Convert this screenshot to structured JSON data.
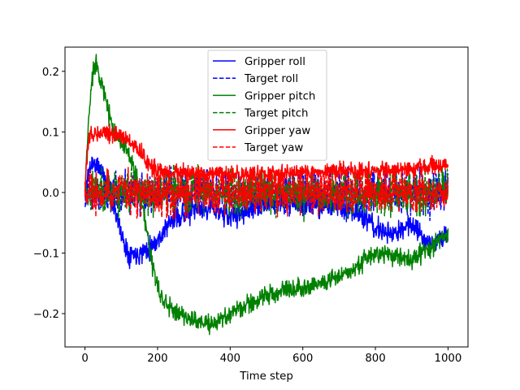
{
  "chart_data": {
    "type": "line",
    "xlabel": "Time step",
    "ylabel": "",
    "xlim": [
      -55,
      1055
    ],
    "ylim": [
      -0.255,
      0.24
    ],
    "x_ticks": [
      0,
      200,
      400,
      600,
      800,
      1000
    ],
    "y_ticks": [
      -0.2,
      -0.1,
      0.0,
      0.1,
      0.2
    ],
    "x_tick_labels": [
      "0",
      "200",
      "400",
      "600",
      "800",
      "1000"
    ],
    "y_tick_labels": [
      "−0.2",
      "−0.1",
      "0.0",
      "0.1",
      "0.2"
    ],
    "legend_position": "top-center",
    "series": [
      {
        "name": "Gripper roll",
        "color": "#0000ff",
        "dash": "solid",
        "noise": 0.009,
        "seed": 11,
        "x": [
          0,
          10,
          20,
          40,
          60,
          80,
          100,
          120,
          150,
          180,
          200,
          220,
          250,
          300,
          350,
          400,
          450,
          500,
          550,
          600,
          650,
          700,
          750,
          800,
          850,
          900,
          950,
          1000
        ],
        "values": [
          0.0,
          0.035,
          0.05,
          0.04,
          0.02,
          -0.02,
          -0.07,
          -0.1,
          -0.1,
          -0.09,
          -0.08,
          -0.06,
          -0.04,
          -0.03,
          -0.025,
          -0.04,
          -0.03,
          -0.02,
          -0.015,
          -0.02,
          -0.02,
          -0.025,
          -0.03,
          -0.06,
          -0.07,
          -0.05,
          -0.085,
          -0.07
        ]
      },
      {
        "name": "Target roll",
        "color": "#0000ff",
        "dash": "dashed",
        "noise": 0.017,
        "seed": 23,
        "x": [
          0,
          1000
        ],
        "values": [
          0.0,
          0.0
        ]
      },
      {
        "name": "Gripper pitch",
        "color": "#008000",
        "dash": "solid",
        "noise": 0.008,
        "seed": 37,
        "x": [
          0,
          10,
          20,
          30,
          50,
          70,
          100,
          130,
          160,
          180,
          200,
          230,
          260,
          300,
          350,
          400,
          450,
          500,
          550,
          600,
          650,
          700,
          750,
          800,
          850,
          900,
          950,
          1000
        ],
        "values": [
          0.0,
          0.12,
          0.19,
          0.22,
          0.17,
          0.12,
          0.08,
          0.05,
          -0.03,
          -0.1,
          -0.16,
          -0.19,
          -0.2,
          -0.21,
          -0.22,
          -0.2,
          -0.185,
          -0.17,
          -0.16,
          -0.155,
          -0.15,
          -0.14,
          -0.12,
          -0.1,
          -0.105,
          -0.11,
          -0.09,
          -0.07
        ]
      },
      {
        "name": "Target pitch",
        "color": "#008000",
        "dash": "dashed",
        "noise": 0.018,
        "seed": 41,
        "x": [
          0,
          1000
        ],
        "values": [
          0.0,
          0.0
        ]
      },
      {
        "name": "Gripper yaw",
        "color": "#ff0000",
        "dash": "solid",
        "noise": 0.007,
        "seed": 53,
        "x": [
          0,
          10,
          30,
          60,
          90,
          120,
          150,
          170,
          200,
          300,
          400,
          500,
          600,
          700,
          800,
          900,
          1000
        ],
        "values": [
          0.0,
          0.09,
          0.1,
          0.1,
          0.095,
          0.085,
          0.07,
          0.05,
          0.035,
          0.03,
          0.03,
          0.03,
          0.035,
          0.035,
          0.035,
          0.04,
          0.045
        ]
      },
      {
        "name": "Target yaw",
        "color": "#ff0000",
        "dash": "dashed",
        "noise": 0.018,
        "seed": 67,
        "x": [
          0,
          1000
        ],
        "values": [
          0.0,
          0.0
        ]
      }
    ]
  }
}
